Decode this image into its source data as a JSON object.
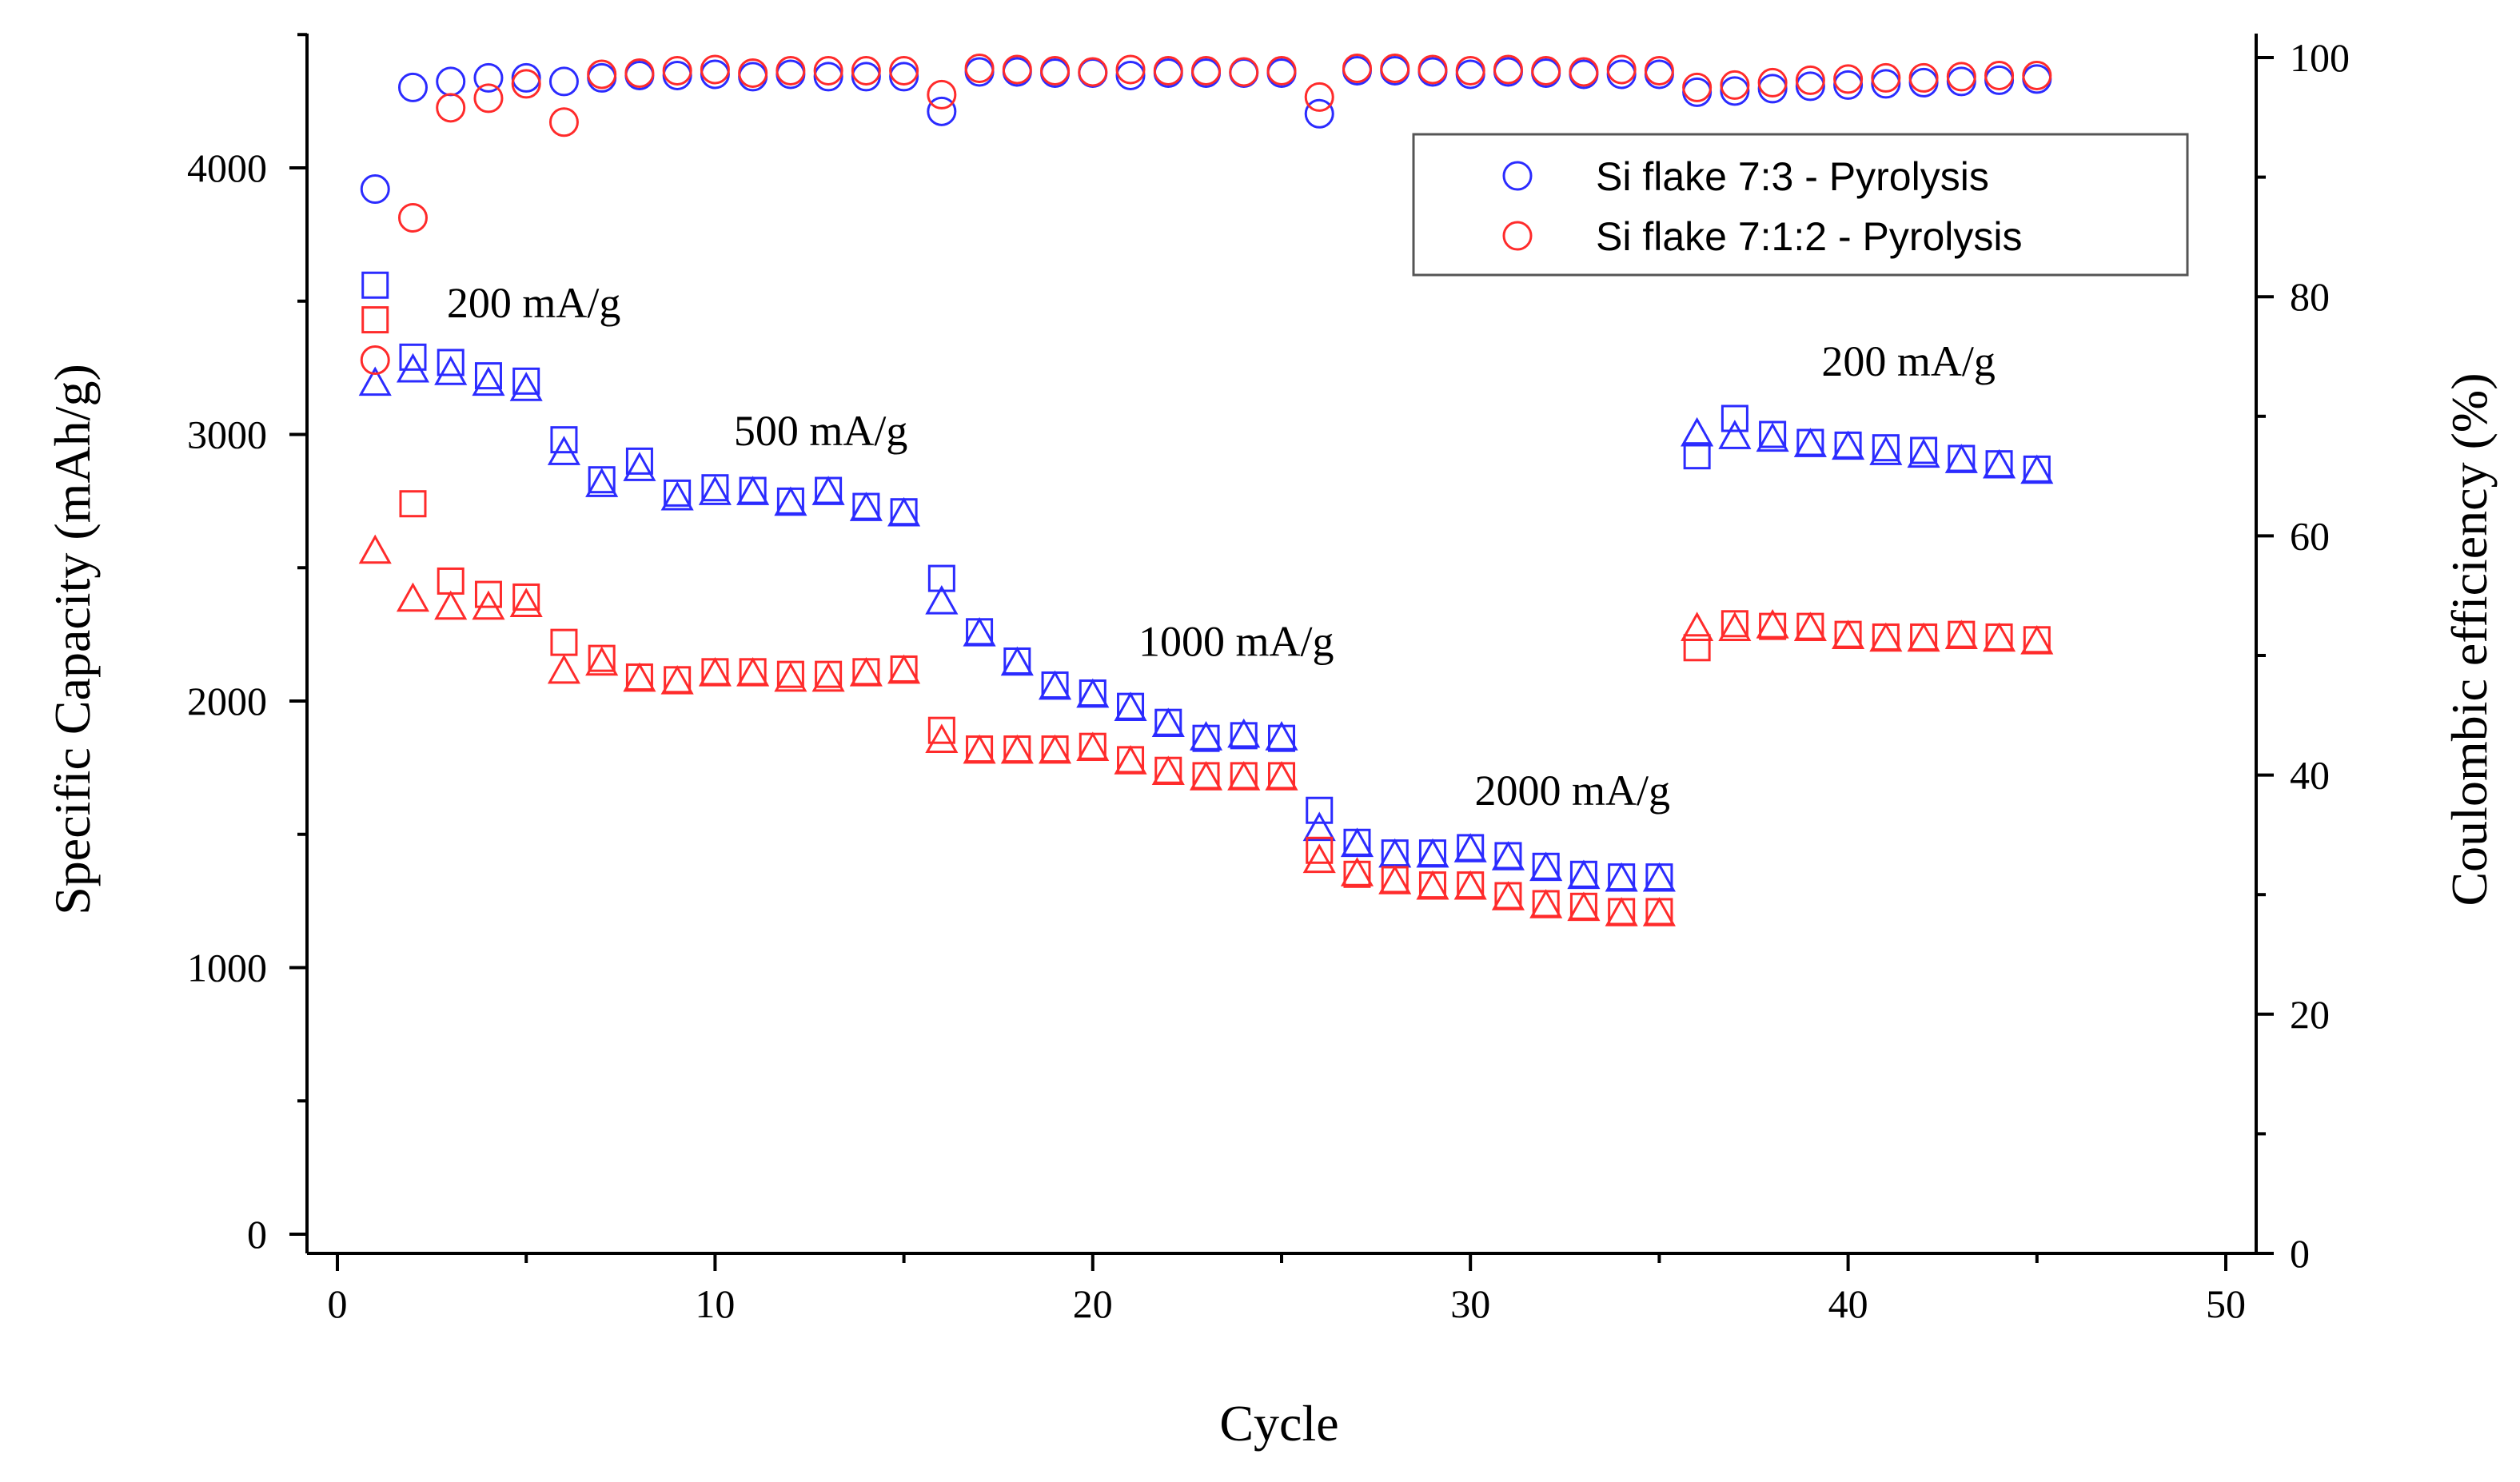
{
  "chart_data": {
    "type": "scatter",
    "xlabel": "Cycle",
    "ylabel_left": "Specific Capacity (mAh/g)",
    "ylabel_right": "Coulombic efficiency (%)",
    "xlim": [
      0,
      50
    ],
    "ylim_left": [
      0,
      4500
    ],
    "ylim_right": [
      0,
      100
    ],
    "x_ticks": [
      0,
      10,
      20,
      30,
      40,
      50
    ],
    "y_left_ticks": [
      0,
      1000,
      2000,
      3000,
      4000
    ],
    "y_right_ticks": [
      0,
      20,
      40,
      60,
      80,
      100
    ],
    "colors": {
      "blue": "#2b2bff",
      "red": "#ff2b2b"
    },
    "legend": {
      "placement": "top-right",
      "entries": [
        {
          "label": "Si flake 7:3 - Pyrolysis",
          "color": "#2b2bff",
          "marker": "circle"
        },
        {
          "label": "Si flake 7:1:2 - Pyrolysis",
          "color": "#ff2b2b",
          "marker": "circle"
        }
      ]
    },
    "annotations": [
      {
        "text": "200 mA/g",
        "x": 5.2,
        "y": 3440
      },
      {
        "text": "500 mA/g",
        "x": 12.8,
        "y": 2960
      },
      {
        "text": "1000 mA/g",
        "x": 23.8,
        "y": 2170
      },
      {
        "text": "2000 mA/g",
        "x": 32.7,
        "y": 1610
      },
      {
        "text": "200 mA/g",
        "x": 41.6,
        "y": 3220
      }
    ],
    "series": [
      {
        "name": "Si flake 7:3 - Pyrolysis (charge capacity)",
        "axis": "left",
        "marker": "square",
        "color": "#2b2bff",
        "x": [
          1,
          2,
          3,
          4,
          5,
          6,
          7,
          8,
          9,
          10,
          11,
          12,
          13,
          14,
          15,
          16,
          17,
          18,
          19,
          20,
          21,
          22,
          23,
          24,
          25,
          26,
          27,
          28,
          29,
          30,
          31,
          32,
          33,
          34,
          35,
          36,
          37,
          38,
          39,
          40,
          41,
          42,
          43,
          44,
          45
        ],
        "y": [
          3560,
          3290,
          3270,
          3220,
          3200,
          2980,
          2830,
          2900,
          2780,
          2800,
          2790,
          2750,
          2790,
          2730,
          2710,
          2460,
          2260,
          2150,
          2060,
          2030,
          1980,
          1920,
          1860,
          1870,
          1860,
          1590,
          1470,
          1430,
          1430,
          1450,
          1420,
          1380,
          1350,
          1340,
          1340,
          2920,
          3060,
          3000,
          2970,
          2960,
          2950,
          2940,
          2910,
          2890,
          2870
        ]
      },
      {
        "name": "Si flake 7:3 - Pyrolysis (discharge capacity)",
        "axis": "left",
        "marker": "triangle",
        "color": "#2b2bff",
        "x": [
          1,
          2,
          3,
          4,
          5,
          6,
          7,
          8,
          9,
          10,
          11,
          12,
          13,
          14,
          15,
          16,
          17,
          18,
          19,
          20,
          21,
          22,
          23,
          24,
          25,
          26,
          27,
          28,
          29,
          30,
          31,
          32,
          33,
          34,
          35,
          36,
          37,
          38,
          39,
          40,
          41,
          42,
          43,
          44,
          45
        ],
        "y": [
          3190,
          3240,
          3230,
          3190,
          3170,
          2930,
          2810,
          2870,
          2760,
          2780,
          2780,
          2740,
          2780,
          2720,
          2700,
          2370,
          2250,
          2140,
          2050,
          2020,
          1970,
          1910,
          1860,
          1870,
          1860,
          1520,
          1460,
          1420,
          1420,
          1440,
          1410,
          1370,
          1340,
          1330,
          1330,
          3000,
          2990,
          2980,
          2960,
          2950,
          2930,
          2920,
          2900,
          2880,
          2860
        ]
      },
      {
        "name": "Si flake 7:1:2 - Pyrolysis (charge capacity)",
        "axis": "left",
        "marker": "square",
        "color": "#ff2b2b",
        "x": [
          1,
          2,
          3,
          4,
          5,
          6,
          7,
          8,
          9,
          10,
          11,
          12,
          13,
          14,
          15,
          16,
          17,
          18,
          19,
          20,
          21,
          22,
          23,
          24,
          25,
          26,
          27,
          28,
          29,
          30,
          31,
          32,
          33,
          34,
          35,
          36,
          37,
          38,
          39,
          40,
          41,
          42,
          43,
          44,
          45
        ],
        "y": [
          3430,
          2740,
          2450,
          2400,
          2390,
          2220,
          2160,
          2090,
          2080,
          2110,
          2110,
          2100,
          2100,
          2110,
          2120,
          1890,
          1820,
          1820,
          1820,
          1830,
          1780,
          1740,
          1720,
          1720,
          1720,
          1440,
          1350,
          1330,
          1310,
          1310,
          1270,
          1240,
          1230,
          1210,
          1210,
          2200,
          2290,
          2280,
          2280,
          2250,
          2240,
          2240,
          2250,
          2240,
          2230
        ]
      },
      {
        "name": "Si flake 7:1:2 - Pyrolysis (discharge capacity)",
        "axis": "left",
        "marker": "triangle",
        "color": "#ff2b2b",
        "x": [
          1,
          2,
          3,
          4,
          5,
          6,
          7,
          8,
          9,
          10,
          11,
          12,
          13,
          14,
          15,
          16,
          17,
          18,
          19,
          20,
          21,
          22,
          23,
          24,
          25,
          26,
          27,
          28,
          29,
          30,
          31,
          32,
          33,
          34,
          35,
          36,
          37,
          38,
          39,
          40,
          41,
          42,
          43,
          44,
          45
        ],
        "y": [
          2560,
          2380,
          2350,
          2350,
          2360,
          2110,
          2140,
          2080,
          2070,
          2100,
          2100,
          2080,
          2080,
          2100,
          2110,
          1850,
          1810,
          1810,
          1810,
          1820,
          1770,
          1730,
          1710,
          1710,
          1710,
          1400,
          1350,
          1320,
          1300,
          1300,
          1260,
          1230,
          1220,
          1200,
          1200,
          2270,
          2270,
          2280,
          2270,
          2240,
          2230,
          2230,
          2240,
          2230,
          2220
        ]
      },
      {
        "name": "Si flake 7:3 - Pyrolysis (coulombic efficiency)",
        "axis": "right",
        "marker": "circle",
        "color": "#2b2bff",
        "x": [
          1,
          2,
          3,
          4,
          5,
          6,
          7,
          8,
          9,
          10,
          11,
          12,
          13,
          14,
          15,
          16,
          17,
          18,
          19,
          20,
          21,
          22,
          23,
          24,
          25,
          26,
          27,
          28,
          29,
          30,
          31,
          32,
          33,
          34,
          35,
          36,
          37,
          38,
          39,
          40,
          41,
          42,
          43,
          44,
          45
        ],
        "y": [
          89,
          97.5,
          98,
          98.3,
          98.3,
          98,
          98.3,
          98.5,
          98.5,
          98.6,
          98.4,
          98.6,
          98.4,
          98.4,
          98.4,
          95.5,
          98.8,
          98.8,
          98.7,
          98.7,
          98.5,
          98.7,
          98.7,
          98.7,
          98.7,
          95.3,
          98.9,
          98.9,
          98.8,
          98.6,
          98.8,
          98.7,
          98.6,
          98.6,
          98.6,
          97.1,
          97.2,
          97.4,
          97.6,
          97.7,
          97.8,
          97.9,
          98,
          98.1,
          98.2
        ]
      },
      {
        "name": "Si flake 7:1:2 - Pyrolysis (coulombic efficiency)",
        "axis": "right",
        "marker": "circle",
        "color": "#ff2b2b",
        "x": [
          1,
          2,
          3,
          4,
          5,
          6,
          7,
          8,
          9,
          10,
          11,
          12,
          13,
          14,
          15,
          16,
          17,
          18,
          19,
          20,
          21,
          22,
          23,
          24,
          25,
          26,
          27,
          28,
          29,
          30,
          31,
          32,
          33,
          34,
          35,
          36,
          37,
          38,
          39,
          40,
          41,
          42,
          43,
          44,
          45
        ],
        "y": [
          74.7,
          86.6,
          95.8,
          96.6,
          97.8,
          94.6,
          98.6,
          98.7,
          98.9,
          99,
          98.7,
          98.9,
          98.9,
          98.9,
          98.9,
          96.9,
          99.1,
          99,
          98.9,
          98.8,
          99,
          98.9,
          98.9,
          98.8,
          98.9,
          96.7,
          99.1,
          99.1,
          99,
          98.9,
          99,
          98.9,
          98.8,
          99,
          98.9,
          97.5,
          97.7,
          97.9,
          98.1,
          98.2,
          98.3,
          98.3,
          98.4,
          98.5,
          98.5
        ]
      }
    ]
  }
}
